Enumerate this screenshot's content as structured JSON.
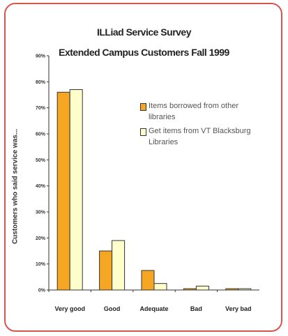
{
  "chart_data": {
    "type": "bar",
    "title": "ILLiad Service Survey",
    "subtitle": "Extended Campus Customers Fall 1999",
    "ylabel": "Customers who said service was...",
    "xlabel": "",
    "ylim": [
      0,
      90
    ],
    "yticks": [
      "0%",
      "10%",
      "20%",
      "30%",
      "40%",
      "50%",
      "60%",
      "70%",
      "80%",
      "90%"
    ],
    "categories": [
      "Very good",
      "Good",
      "Adequate",
      "Bad",
      "Very bad"
    ],
    "legend_position": "right",
    "grid": false,
    "series": [
      {
        "name": "Items borrowed from other libraries",
        "color": "#f5a623",
        "values": [
          76,
          15,
          7.5,
          0.5,
          0.5
        ]
      },
      {
        "name": "Get items from VT Blacksburg Libraries",
        "color": "#ffffcc",
        "values": [
          77,
          19,
          2.5,
          1.5,
          0.5
        ]
      }
    ]
  }
}
